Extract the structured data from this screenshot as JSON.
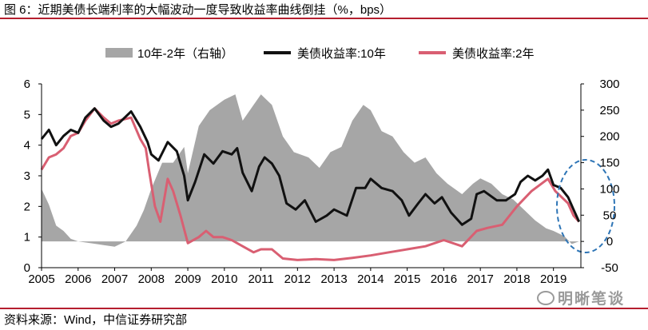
{
  "header": {
    "title": "图 6：近期美债长端利率的大幅波动一度导致收益率曲线倒挂（%，bps）"
  },
  "footer": {
    "source": "资料来源：Wind，中信证券研究部",
    "watermark": "明晰笔谈"
  },
  "colors": {
    "accent_rule": "#b51e2e",
    "area": "#a6a6a6",
    "line_10y": "#111111",
    "line_2y": "#d95f72",
    "circle": "#2e75b6"
  },
  "chart_data": {
    "type": "line",
    "title": "近期美债长端利率的大幅波动一度导致收益率曲线倒挂（%，bps）",
    "legend": [
      "10年-2年（右轴）",
      "美债收益率:10年",
      "美债收益率:2年"
    ],
    "legend_position": "top",
    "x_ticks": [
      "2005",
      "2006",
      "2007",
      "2008",
      "2009",
      "2010",
      "2011",
      "2012",
      "2013",
      "2014",
      "2015",
      "2016",
      "2017",
      "2018",
      "2019"
    ],
    "xlim": [
      2005,
      2019.75
    ],
    "y_left": {
      "range": [
        0,
        6
      ],
      "ticks": [
        "0",
        "1",
        "2",
        "3",
        "4",
        "5",
        "6"
      ],
      "label": "%"
    },
    "y_right": {
      "range": [
        -50,
        300
      ],
      "ticks": [
        "-50",
        "0",
        "50",
        "100",
        "150",
        "200",
        "250",
        "300"
      ],
      "label": "bps"
    },
    "series": [
      {
        "name": "美债收益率:10年",
        "axis": "left",
        "style": "line",
        "points": [
          [
            2005.0,
            4.2
          ],
          [
            2005.2,
            4.5
          ],
          [
            2005.4,
            4.0
          ],
          [
            2005.6,
            4.3
          ],
          [
            2005.8,
            4.5
          ],
          [
            2006.0,
            4.4
          ],
          [
            2006.2,
            4.9
          ],
          [
            2006.45,
            5.2
          ],
          [
            2006.7,
            4.8
          ],
          [
            2006.9,
            4.6
          ],
          [
            2007.1,
            4.7
          ],
          [
            2007.45,
            5.1
          ],
          [
            2007.7,
            4.6
          ],
          [
            2007.9,
            4.1
          ],
          [
            2008.0,
            3.7
          ],
          [
            2008.2,
            3.5
          ],
          [
            2008.45,
            4.1
          ],
          [
            2008.7,
            3.8
          ],
          [
            2008.9,
            3.0
          ],
          [
            2009.0,
            2.2
          ],
          [
            2009.2,
            2.8
          ],
          [
            2009.45,
            3.7
          ],
          [
            2009.7,
            3.4
          ],
          [
            2009.95,
            3.8
          ],
          [
            2010.2,
            3.7
          ],
          [
            2010.35,
            3.9
          ],
          [
            2010.5,
            3.1
          ],
          [
            2010.75,
            2.5
          ],
          [
            2010.95,
            3.3
          ],
          [
            2011.1,
            3.6
          ],
          [
            2011.3,
            3.4
          ],
          [
            2011.5,
            3.0
          ],
          [
            2011.7,
            2.1
          ],
          [
            2011.95,
            1.9
          ],
          [
            2012.2,
            2.2
          ],
          [
            2012.5,
            1.5
          ],
          [
            2012.8,
            1.7
          ],
          [
            2013.0,
            1.9
          ],
          [
            2013.35,
            1.7
          ],
          [
            2013.6,
            2.6
          ],
          [
            2013.85,
            2.6
          ],
          [
            2014.0,
            2.9
          ],
          [
            2014.3,
            2.6
          ],
          [
            2014.6,
            2.5
          ],
          [
            2014.85,
            2.2
          ],
          [
            2015.05,
            1.7
          ],
          [
            2015.3,
            2.1
          ],
          [
            2015.5,
            2.4
          ],
          [
            2015.75,
            2.1
          ],
          [
            2015.95,
            2.3
          ],
          [
            2016.2,
            1.8
          ],
          [
            2016.5,
            1.4
          ],
          [
            2016.75,
            1.6
          ],
          [
            2016.9,
            2.4
          ],
          [
            2017.1,
            2.5
          ],
          [
            2017.45,
            2.2
          ],
          [
            2017.7,
            2.2
          ],
          [
            2017.95,
            2.4
          ],
          [
            2018.1,
            2.8
          ],
          [
            2018.3,
            3.0
          ],
          [
            2018.5,
            2.85
          ],
          [
            2018.7,
            3.0
          ],
          [
            2018.85,
            3.2
          ],
          [
            2019.0,
            2.7
          ],
          [
            2019.2,
            2.6
          ],
          [
            2019.4,
            2.3
          ],
          [
            2019.55,
            1.9
          ],
          [
            2019.7,
            1.5
          ]
        ]
      },
      {
        "name": "美债收益率:2年",
        "axis": "left",
        "style": "line",
        "points": [
          [
            2005.0,
            3.2
          ],
          [
            2005.2,
            3.6
          ],
          [
            2005.4,
            3.7
          ],
          [
            2005.6,
            3.9
          ],
          [
            2005.8,
            4.3
          ],
          [
            2006.0,
            4.4
          ],
          [
            2006.2,
            4.8
          ],
          [
            2006.45,
            5.2
          ],
          [
            2006.7,
            4.9
          ],
          [
            2006.9,
            4.7
          ],
          [
            2007.1,
            4.8
          ],
          [
            2007.45,
            4.9
          ],
          [
            2007.7,
            4.2
          ],
          [
            2007.85,
            3.9
          ],
          [
            2007.95,
            3.1
          ],
          [
            2008.1,
            2.0
          ],
          [
            2008.25,
            1.5
          ],
          [
            2008.45,
            2.9
          ],
          [
            2008.6,
            2.5
          ],
          [
            2008.8,
            1.7
          ],
          [
            2009.0,
            0.8
          ],
          [
            2009.3,
            1.0
          ],
          [
            2009.5,
            1.2
          ],
          [
            2009.7,
            1.0
          ],
          [
            2009.95,
            1.0
          ],
          [
            2010.2,
            0.9
          ],
          [
            2010.5,
            0.7
          ],
          [
            2010.8,
            0.5
          ],
          [
            2011.0,
            0.6
          ],
          [
            2011.3,
            0.6
          ],
          [
            2011.6,
            0.3
          ],
          [
            2012.0,
            0.25
          ],
          [
            2012.5,
            0.28
          ],
          [
            2013.0,
            0.25
          ],
          [
            2013.5,
            0.32
          ],
          [
            2014.0,
            0.4
          ],
          [
            2014.5,
            0.5
          ],
          [
            2015.0,
            0.6
          ],
          [
            2015.5,
            0.7
          ],
          [
            2016.0,
            0.9
          ],
          [
            2016.5,
            0.7
          ],
          [
            2016.9,
            1.2
          ],
          [
            2017.2,
            1.3
          ],
          [
            2017.6,
            1.4
          ],
          [
            2018.0,
            2.0
          ],
          [
            2018.4,
            2.5
          ],
          [
            2018.85,
            2.9
          ],
          [
            2019.05,
            2.5
          ],
          [
            2019.4,
            2.1
          ],
          [
            2019.55,
            1.7
          ],
          [
            2019.7,
            1.5
          ]
        ]
      },
      {
        "name": "10年-2年（右轴）",
        "axis": "right",
        "style": "area",
        "points": [
          [
            2005.0,
            100
          ],
          [
            2005.2,
            70
          ],
          [
            2005.4,
            30
          ],
          [
            2005.6,
            20
          ],
          [
            2005.8,
            5
          ],
          [
            2006.0,
            0
          ],
          [
            2006.5,
            -5
          ],
          [
            2007.0,
            -10
          ],
          [
            2007.3,
            0
          ],
          [
            2007.6,
            30
          ],
          [
            2007.8,
            60
          ],
          [
            2008.0,
            100
          ],
          [
            2008.3,
            150
          ],
          [
            2008.6,
            150
          ],
          [
            2008.9,
            180
          ],
          [
            2009.0,
            130
          ],
          [
            2009.3,
            220
          ],
          [
            2009.6,
            250
          ],
          [
            2010.0,
            270
          ],
          [
            2010.3,
            280
          ],
          [
            2010.5,
            230
          ],
          [
            2010.8,
            260
          ],
          [
            2011.0,
            280
          ],
          [
            2011.3,
            260
          ],
          [
            2011.6,
            200
          ],
          [
            2011.9,
            170
          ],
          [
            2012.3,
            160
          ],
          [
            2012.6,
            140
          ],
          [
            2012.9,
            170
          ],
          [
            2013.2,
            180
          ],
          [
            2013.5,
            230
          ],
          [
            2013.8,
            260
          ],
          [
            2014.0,
            250
          ],
          [
            2014.3,
            210
          ],
          [
            2014.6,
            200
          ],
          [
            2014.9,
            170
          ],
          [
            2015.2,
            150
          ],
          [
            2015.5,
            160
          ],
          [
            2015.8,
            130
          ],
          [
            2016.1,
            110
          ],
          [
            2016.5,
            90
          ],
          [
            2016.8,
            110
          ],
          [
            2017.0,
            120
          ],
          [
            2017.3,
            110
          ],
          [
            2017.6,
            90
          ],
          [
            2017.9,
            80
          ],
          [
            2018.2,
            60
          ],
          [
            2018.5,
            40
          ],
          [
            2018.8,
            25
          ],
          [
            2019.0,
            20
          ],
          [
            2019.3,
            10
          ],
          [
            2019.5,
            -5
          ],
          [
            2019.7,
            0
          ]
        ]
      }
    ],
    "annotation": "dashed ellipse highlighting 2019 inversion"
  }
}
